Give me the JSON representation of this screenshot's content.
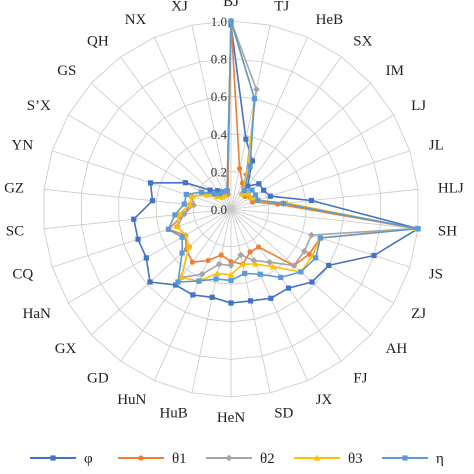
{
  "chart_data": {
    "type": "radar",
    "title": "",
    "categories": [
      "BJ",
      "TJ",
      "HeB",
      "SX",
      "IM",
      "LJ",
      "JL",
      "HLJ",
      "SH",
      "JS",
      "ZJ",
      "AH",
      "FJ",
      "JX",
      "SD",
      "HeN",
      "HuB",
      "HuN",
      "GD",
      "GX",
      "HaN",
      "CQ",
      "SC",
      "GZ",
      "YN",
      "S’X",
      "GS",
      "QH",
      "NX",
      "XJ"
    ],
    "rlim": [
      0,
      1.0
    ],
    "ticks": [
      "0.0",
      "0.2",
      "0.4",
      "0.6",
      "0.8",
      "1.0"
    ],
    "tick_values": [
      0,
      0.2,
      0.4,
      0.6,
      0.8,
      1.0
    ],
    "grid": true,
    "legend_position": "bottom",
    "series": [
      {
        "name": "φ",
        "color": "#4472c4",
        "marker": "square",
        "values": [
          0.98,
          0.38,
          0.28,
          0.15,
          0.2,
          0.2,
          0.22,
          0.43,
          1.0,
          0.8,
          0.6,
          0.58,
          0.52,
          0.52,
          0.5,
          0.5,
          0.48,
          0.5,
          0.5,
          0.58,
          0.52,
          0.52,
          0.52,
          0.42,
          0.45,
          0.28,
          0.15,
          0.12,
          0.1,
          0.1
        ]
      },
      {
        "name": "θ1",
        "color": "#ed7d31",
        "marker": "circle",
        "values": [
          1.0,
          0.22,
          0.15,
          0.1,
          0.1,
          0.12,
          0.12,
          0.25,
          0.99,
          0.5,
          0.48,
          0.45,
          0.25,
          0.25,
          0.3,
          0.28,
          0.25,
          0.3,
          0.35,
          0.32,
          0.28,
          0.35,
          0.25,
          0.22,
          0.22,
          0.15,
          0.1,
          0.08,
          0.08,
          0.08
        ]
      },
      {
        "name": "θ2",
        "color": "#a5a5a5",
        "marker": "diamond",
        "values": [
          1.0,
          0.65,
          0.2,
          0.1,
          0.12,
          0.12,
          0.15,
          0.28,
          0.99,
          0.45,
          0.45,
          0.45,
          0.35,
          0.3,
          0.25,
          0.3,
          0.3,
          0.38,
          0.45,
          0.3,
          0.28,
          0.3,
          0.25,
          0.2,
          0.22,
          0.15,
          0.1,
          0.08,
          0.08,
          0.1
        ]
      },
      {
        "name": "θ3",
        "color": "#ffc000",
        "marker": "triangle",
        "values": [
          1.0,
          0.6,
          0.22,
          0.1,
          0.12,
          0.12,
          0.15,
          0.3,
          0.99,
          0.5,
          0.5,
          0.5,
          0.38,
          0.32,
          0.3,
          0.35,
          0.35,
          0.42,
          0.45,
          0.3,
          0.28,
          0.3,
          0.28,
          0.22,
          0.22,
          0.15,
          0.1,
          0.08,
          0.08,
          0.1
        ]
      },
      {
        "name": "η",
        "color": "#5b9bd5",
        "marker": "square",
        "values": [
          1.0,
          0.6,
          0.25,
          0.12,
          0.15,
          0.15,
          0.15,
          0.28,
          1.0,
          0.5,
          0.52,
          0.5,
          0.45,
          0.38,
          0.35,
          0.38,
          0.38,
          0.42,
          0.48,
          0.35,
          0.3,
          0.35,
          0.3,
          0.25,
          0.25,
          0.18,
          0.12,
          0.1,
          0.1,
          0.1
        ]
      }
    ]
  }
}
